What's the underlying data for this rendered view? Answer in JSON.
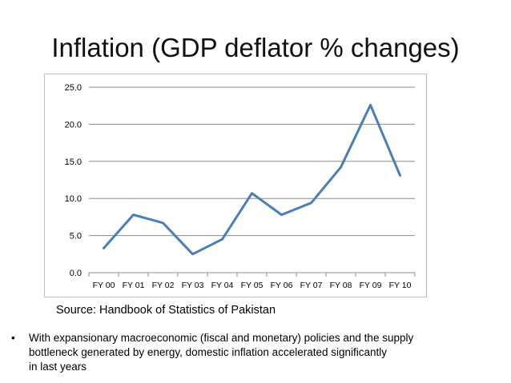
{
  "slide": {
    "title": "Inflation (GDP deflator % changes)",
    "source": "Source: Handbook of Statistics of Pakistan",
    "bullet_symbol": "•",
    "bullet_lines": [
      "With expansionary macroeconomic (fiscal and monetary) policies and the supply",
      "bottleneck generated by energy, domestic inflation accelerated significantly",
      "in last years"
    ]
  },
  "chart_data": {
    "type": "line",
    "title": "",
    "xlabel": "",
    "ylabel": "",
    "categories": [
      "FY 00",
      "FY 01",
      "FY 02",
      "FY 03",
      "FY 04",
      "FY 05",
      "FY 06",
      "FY 07",
      "FY 08",
      "FY 09",
      "FY 10"
    ],
    "series": [
      {
        "values": [
          3.3,
          7.8,
          6.7,
          2.5,
          4.5,
          10.7,
          7.8,
          9.4,
          14.2,
          22.6,
          13.1
        ]
      }
    ],
    "ylim": [
      0,
      25
    ],
    "yticks": [
      "0.0",
      "5.0",
      "10.0",
      "15.0",
      "20.0",
      "25.0"
    ],
    "grid": "horizontal",
    "legend": "none",
    "line_color": "#4a7ebb",
    "grid_color": "#8c8c8c"
  }
}
